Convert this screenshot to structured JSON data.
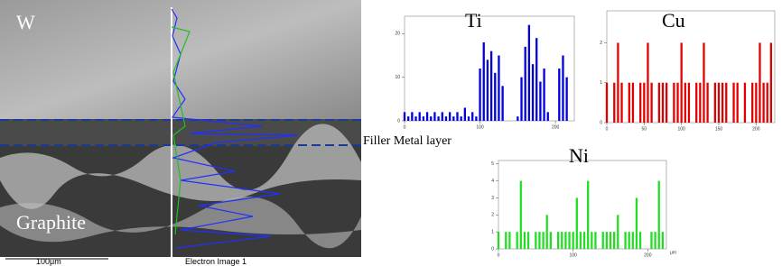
{
  "image": {
    "top_label": "W",
    "bottom_label": "Graphite",
    "layer_label": "Filler  Metal layer",
    "scale_bar": "100μm",
    "caption": "Electron Image 1"
  },
  "chart_data": [
    {
      "type": "bar",
      "title": "Ti",
      "color": "#0000e0",
      "x": [
        0,
        5,
        10,
        15,
        20,
        25,
        30,
        35,
        40,
        45,
        50,
        55,
        60,
        65,
        70,
        75,
        80,
        85,
        90,
        95,
        100,
        105,
        110,
        115,
        120,
        125,
        130,
        135,
        140,
        145,
        150,
        155,
        160,
        165,
        170,
        175,
        180,
        185,
        190,
        195,
        200,
        205,
        210,
        215,
        220
      ],
      "values": [
        2,
        1,
        2,
        1,
        2,
        1,
        2,
        1,
        2,
        1,
        2,
        1,
        2,
        1,
        2,
        1,
        3,
        1,
        2,
        1,
        12,
        18,
        14,
        16,
        11,
        15,
        8,
        0,
        0,
        0,
        1,
        10,
        17,
        22,
        13,
        19,
        9,
        12,
        2,
        0,
        0,
        12,
        15,
        10,
        0
      ],
      "xlim": [
        0,
        225
      ],
      "xticks": [
        0,
        100,
        200
      ],
      "ylim": [
        0,
        24
      ],
      "yticks": [
        0,
        10,
        20
      ]
    },
    {
      "type": "bar",
      "title": "Cu",
      "color": "#e00000",
      "x": [
        0,
        5,
        10,
        15,
        20,
        25,
        30,
        35,
        40,
        45,
        50,
        55,
        60,
        65,
        70,
        75,
        80,
        85,
        90,
        95,
        100,
        105,
        110,
        115,
        120,
        125,
        130,
        135,
        140,
        145,
        150,
        155,
        160,
        165,
        170,
        175,
        180,
        185,
        190,
        195,
        200,
        205,
        210,
        215,
        220
      ],
      "values": [
        1,
        0,
        1,
        2,
        1,
        0,
        1,
        1,
        0,
        1,
        1,
        2,
        1,
        0,
        1,
        1,
        1,
        0,
        1,
        1,
        2,
        1,
        1,
        0,
        1,
        1,
        2,
        1,
        0,
        1,
        1,
        1,
        1,
        0,
        1,
        1,
        0,
        1,
        0,
        1,
        1,
        2,
        1,
        1,
        2
      ],
      "xlim": [
        0,
        225
      ],
      "xticks": [
        0,
        50,
        100,
        150,
        200
      ],
      "ylim": [
        0,
        2.8
      ],
      "yticks": [
        0,
        1,
        2
      ]
    },
    {
      "type": "bar",
      "title": "Ni",
      "color": "#22dd22",
      "x_label": "µm",
      "x": [
        0,
        5,
        10,
        15,
        20,
        25,
        30,
        35,
        40,
        45,
        50,
        55,
        60,
        65,
        70,
        75,
        80,
        85,
        90,
        95,
        100,
        105,
        110,
        115,
        120,
        125,
        130,
        135,
        140,
        145,
        150,
        155,
        160,
        165,
        170,
        175,
        180,
        185,
        190,
        195,
        200,
        205,
        210,
        215,
        220
      ],
      "values": [
        1,
        0,
        1,
        1,
        0,
        1,
        4,
        1,
        1,
        0,
        1,
        1,
        1,
        2,
        1,
        0,
        1,
        1,
        1,
        1,
        1,
        3,
        1,
        1,
        4,
        1,
        1,
        0,
        1,
        1,
        1,
        1,
        2,
        0,
        1,
        1,
        1,
        3,
        1,
        0,
        0,
        1,
        1,
        4,
        1
      ],
      "xlim": [
        0,
        225
      ],
      "xticks": [
        0,
        100,
        200
      ],
      "ylim": [
        0,
        5.2
      ],
      "yticks": [
        0,
        1,
        2,
        3,
        4,
        5
      ]
    }
  ]
}
